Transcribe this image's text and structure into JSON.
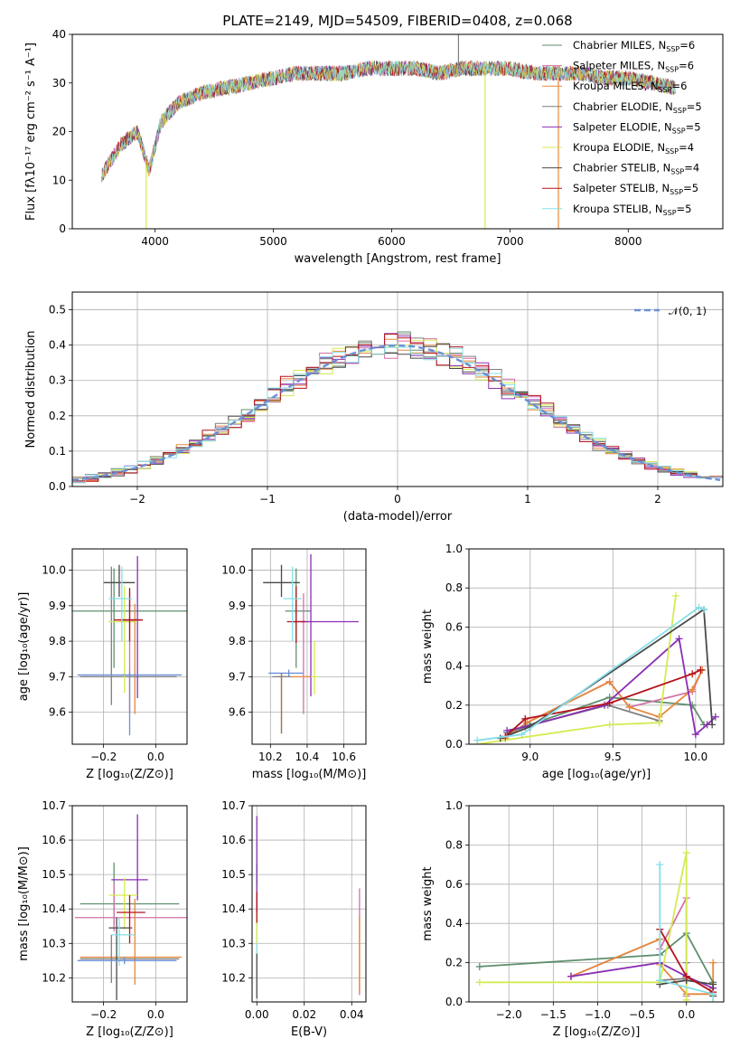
{
  "page": {
    "title": "PLATE=2149, MJD=54509, FIBERID=0408, z=0.068"
  },
  "colors": {
    "Chabrier MILES": "#5f8f6e",
    "Salpeter MILES": "#d56fa8",
    "Kroupa MILES": "#e5883a",
    "Chabrier ELODIE": "#7f7f7f",
    "Salpeter ELODIE": "#8a2fb3",
    "Kroupa ELODIE": "#d6ea52",
    "Chabrier STELIB": "#4a4a4a",
    "Salpeter STELIB": "#b5121b",
    "Kroupa STELIB": "#86dfe8",
    "normal": "#6a8fd6"
  },
  "chart_data": [
    {
      "id": "spectrum",
      "type": "line",
      "xlabel": "wavelength [Angstrom, rest frame]",
      "ylabel": "Flux [fλ10⁻¹⁷ erg cm⁻² s⁻¹ A⁻¹]",
      "xlim": [
        3300,
        8800
      ],
      "ylim": [
        0,
        40
      ],
      "xticks": [
        4000,
        5000,
        6000,
        7000,
        8000
      ],
      "yticks": [
        0,
        10,
        20,
        30,
        40
      ],
      "grid": false,
      "legend": "right",
      "legend_entries": [
        {
          "text": "Chabrier MILES, N",
          "sub": "SSP",
          "eq": "=6"
        },
        {
          "text": "Salpeter MILES, N",
          "sub": "SSP",
          "eq": "=6"
        },
        {
          "text": "Kroupa MILES, N",
          "sub": "SSP",
          "eq": "=6"
        },
        {
          "text": "Chabrier ELODIE, N",
          "sub": "SSP",
          "eq": "=5"
        },
        {
          "text": "Salpeter ELODIE, N",
          "sub": "SSP",
          "eq": "=5"
        },
        {
          "text": "Kroupa ELODIE, N",
          "sub": "SSP",
          "eq": "=4"
        },
        {
          "text": "Chabrier STELIB, N",
          "sub": "SSP",
          "eq": "=4"
        },
        {
          "text": "Salpeter STELIB, N",
          "sub": "SSP",
          "eq": "=5"
        },
        {
          "text": "Kroupa STELIB, N",
          "sub": "SSP",
          "eq": "=5"
        }
      ],
      "legend_colors": [
        "#5f8f6e",
        "#d56fa8",
        "#e5883a",
        "#7f7f7f",
        "#8a2fb3",
        "#d6ea52",
        "#4a4a4a",
        "#b5121b",
        "#86dfe8"
      ],
      "data": {
        "x": [
          3550,
          3700,
          3850,
          3950,
          4050,
          4200,
          4400,
          4600,
          4800,
          5000,
          5200,
          5400,
          5600,
          5800,
          6000,
          6200,
          6400,
          6600,
          6800,
          7000,
          7200,
          7400,
          7600,
          7800,
          8000,
          8200,
          8400
        ],
        "y": [
          11,
          17,
          20,
          12,
          22,
          26,
          28,
          29,
          30,
          31,
          32,
          32,
          32,
          33,
          33,
          33,
          32,
          33,
          33,
          33,
          32,
          32,
          32,
          31,
          31,
          30,
          29
        ]
      },
      "deep_lines": [
        {
          "x": 3925,
          "color": "#d6ea52"
        },
        {
          "x": 6790,
          "color": "#d6ea52"
        },
        {
          "x": 7410,
          "color": "#e5883a"
        },
        {
          "x": 6565,
          "color": "#7f7f7f",
          "up": true
        }
      ]
    },
    {
      "id": "residuals",
      "type": "histogram",
      "xlabel": "(data-model)/error",
      "ylabel": "Normed distribution",
      "xlim": [
        -2.5,
        2.5
      ],
      "ylim": [
        0,
        0.55
      ],
      "xticks": [
        -2,
        -1,
        0,
        1,
        2
      ],
      "yticks": [
        0.0,
        0.1,
        0.2,
        0.3,
        0.4,
        0.5
      ],
      "grid": true,
      "legend": "top-right",
      "legend_label": "𝒩(0, 1)",
      "bin_width": 0.1
    },
    {
      "id": "age_vs_Z",
      "type": "errorbar",
      "xlabel": "Z [log₁₀(Z/Z⊙)]",
      "ylabel": "age  [log₁₀(age/yr)]",
      "xlim": [
        -0.32,
        0.12
      ],
      "ylim": [
        9.51,
        10.06
      ],
      "xticks": [
        -0.2,
        0.0
      ],
      "yticks": [
        9.6,
        9.7,
        9.8,
        9.9,
        10.0
      ],
      "grid": true,
      "points": [
        {
          "x": -0.16,
          "y": 9.885,
          "xerr": [
            0.21,
            0.32
          ],
          "yerr": [
            0.16,
            0.12
          ],
          "c": "#5f8f6e"
        },
        {
          "x": -0.1,
          "y": 9.86,
          "xerr": [
            0.04,
            0.02
          ],
          "yerr": [
            0.26,
            0.08
          ],
          "c": "#d56fa8"
        },
        {
          "x": -0.08,
          "y": 9.855,
          "xerr": [
            0.06,
            0.01
          ],
          "yerr": [
            0.26,
            0.05
          ],
          "c": "#e5883a"
        },
        {
          "x": -0.17,
          "y": 9.7,
          "xerr": [
            0.12,
            0.25
          ],
          "yerr": [
            0.08,
            0.31
          ],
          "c": "#7f7f7f"
        },
        {
          "x": -0.07,
          "y": 9.86,
          "xerr": [
            0.06,
            0.02
          ],
          "yerr": [
            0.22,
            0.18
          ],
          "c": "#8a2fb3"
        },
        {
          "x": -0.12,
          "y": 9.855,
          "xerr": [
            0.06,
            0.05
          ],
          "yerr": [
            0.2,
            0.1
          ],
          "c": "#d6ea52"
        },
        {
          "x": -0.14,
          "y": 9.965,
          "xerr": [
            0.06,
            0.06
          ],
          "yerr": [
            0.04,
            0.05
          ],
          "c": "#4a4a4a"
        },
        {
          "x": -0.1,
          "y": 9.86,
          "xerr": [
            0.06,
            0.05
          ],
          "yerr": [
            0.06,
            0.09
          ],
          "c": "#b5121b"
        },
        {
          "x": -0.13,
          "y": 9.92,
          "xerr": [
            0.05,
            0.04
          ],
          "yerr": [
            0.12,
            0.09
          ],
          "c": "#86dfe8"
        },
        {
          "x": -0.1,
          "y": 9.705,
          "xerr": [
            0.2,
            0.2
          ],
          "yerr": [
            0.17,
            0.01
          ],
          "c": "#6a8fd6"
        }
      ]
    },
    {
      "id": "age_vs_mass",
      "type": "errorbar",
      "xlabel": "mass [log₁₀(M/M⊙)]",
      "ylabel": "",
      "xlim": [
        10.1,
        10.72
      ],
      "ylim": [
        9.51,
        10.06
      ],
      "xticks": [
        10.2,
        10.4,
        10.6
      ],
      "yticks": [
        9.6,
        9.7,
        9.8,
        9.9,
        10.0
      ],
      "grid": true,
      "points": [
        {
          "x": 10.34,
          "y": 9.885,
          "xerr": [
            0.06,
            0.08
          ],
          "yerr": [
            0.16,
            0.12
          ],
          "c": "#5f8f6e"
        },
        {
          "x": 10.38,
          "y": 9.855,
          "xerr": [
            0.02,
            0.03
          ],
          "yerr": [
            0.26,
            0.08
          ],
          "c": "#d56fa8"
        },
        {
          "x": 10.26,
          "y": 9.7,
          "xerr": [
            0.02,
            0.17
          ],
          "yerr": [
            0.16,
            0.01
          ],
          "c": "#e5883a"
        },
        {
          "x": 10.26,
          "y": 9.7,
          "xerr": [
            0.05,
            0.05
          ],
          "yerr": [
            0.16,
            0.01
          ],
          "c": "#7f7f7f"
        },
        {
          "x": 10.42,
          "y": 9.855,
          "xerr": [
            0.1,
            0.26
          ],
          "yerr": [
            0.21,
            0.19
          ],
          "c": "#8a2fb3"
        },
        {
          "x": 10.44,
          "y": 9.7,
          "xerr": [
            0.02,
            0.02
          ],
          "yerr": [
            0.05,
            0.1
          ],
          "c": "#d6ea52"
        },
        {
          "x": 10.26,
          "y": 9.965,
          "xerr": [
            0.1,
            0.1
          ],
          "yerr": [
            0.04,
            0.05
          ],
          "c": "#4a4a4a"
        },
        {
          "x": 10.34,
          "y": 9.855,
          "xerr": [
            0.05,
            0.05
          ],
          "yerr": [
            0.06,
            0.1
          ],
          "c": "#b5121b"
        },
        {
          "x": 10.32,
          "y": 9.92,
          "xerr": [
            0.05,
            0.05
          ],
          "yerr": [
            0.12,
            0.09
          ],
          "c": "#86dfe8"
        },
        {
          "x": 10.3,
          "y": 9.71,
          "xerr": [
            0.11,
            0.08
          ],
          "yerr": [
            0.01,
            0.01
          ],
          "c": "#6a8fd6"
        }
      ]
    },
    {
      "id": "weight_vs_age",
      "type": "line",
      "xlabel": "age  [log₁₀(age/yr)]",
      "ylabel": "mass weight",
      "xlim": [
        8.63,
        10.17
      ],
      "ylim": [
        0.0,
        1.0
      ],
      "xticks": [
        9.0,
        9.5,
        10.0
      ],
      "yticks": [
        0.0,
        0.2,
        0.4,
        0.6,
        0.8,
        1.0
      ],
      "grid": true,
      "series": [
        {
          "c": "#5f8f6e",
          "x": [
            8.88,
            9.0,
            9.48,
            9.98,
            10.05
          ],
          "y": [
            0.06,
            0.1,
            0.24,
            0.2,
            0.1
          ]
        },
        {
          "c": "#d56fa8",
          "x": [
            8.85,
            8.98,
            9.48,
            9.6,
            9.98,
            10.04
          ],
          "y": [
            0.03,
            0.11,
            0.32,
            0.19,
            0.27,
            0.38
          ]
        },
        {
          "c": "#e5883a",
          "x": [
            8.85,
            8.98,
            9.48,
            9.6,
            9.78,
            9.98,
            10.04
          ],
          "y": [
            0.03,
            0.11,
            0.32,
            0.19,
            0.14,
            0.28,
            0.38
          ]
        },
        {
          "c": "#7f7f7f",
          "x": [
            8.86,
            8.97,
            9.47,
            9.78
          ],
          "y": [
            0.06,
            0.09,
            0.2,
            0.12
          ]
        },
        {
          "c": "#8a2fb3",
          "x": [
            8.86,
            8.97,
            9.45,
            9.9,
            10.0,
            10.07,
            10.12
          ],
          "y": [
            0.07,
            0.09,
            0.2,
            0.54,
            0.05,
            0.1,
            0.14
          ]
        },
        {
          "c": "#d6ea52",
          "x": [
            8.68,
            9.48,
            9.78,
            9.88
          ],
          "y": [
            0.0,
            0.1,
            0.11,
            0.76
          ]
        },
        {
          "c": "#4a4a4a",
          "x": [
            8.82,
            9.0,
            10.05,
            10.1
          ],
          "y": [
            0.03,
            0.09,
            0.69,
            0.1
          ]
        },
        {
          "c": "#b5121b",
          "x": [
            8.85,
            8.97,
            9.48,
            9.98,
            10.03
          ],
          "y": [
            0.04,
            0.13,
            0.21,
            0.36,
            0.38
          ]
        },
        {
          "c": "#86dfe8",
          "x": [
            8.68,
            8.95,
            10.02,
            10.05
          ],
          "y": [
            0.02,
            0.05,
            0.7,
            0.69
          ]
        }
      ]
    },
    {
      "id": "mass_vs_Z",
      "type": "errorbar",
      "xlabel": "Z [log₁₀(Z/Z⊙)]",
      "ylabel": "mass [log₁₀(M/M⊙)]",
      "xlim": [
        -0.32,
        0.12
      ],
      "ylim": [
        10.13,
        10.7
      ],
      "xticks": [
        -0.2,
        0.0
      ],
      "yticks": [
        10.2,
        10.3,
        10.4,
        10.5,
        10.6,
        10.7
      ],
      "grid": true,
      "points": [
        {
          "x": -0.16,
          "y": 10.415,
          "xerr": [
            0.13,
            0.25
          ],
          "yerr": [
            0.06,
            0.12
          ],
          "c": "#5f8f6e"
        },
        {
          "x": -0.16,
          "y": 10.375,
          "xerr": [
            0.15,
            0.3
          ],
          "yerr": [
            0.04,
            0.1
          ],
          "c": "#d56fa8"
        },
        {
          "x": -0.08,
          "y": 10.26,
          "xerr": [
            0.21,
            0.18
          ],
          "yerr": [
            0.08,
            0.17
          ],
          "c": "#e5883a"
        },
        {
          "x": -0.17,
          "y": 10.255,
          "xerr": [
            0.12,
            0.26
          ],
          "yerr": [
            0.07,
            0.07
          ],
          "c": "#7f7f7f"
        },
        {
          "x": -0.07,
          "y": 10.485,
          "xerr": [
            0.1,
            0.04
          ],
          "yerr": [
            0.06,
            0.19
          ],
          "c": "#8a2fb3"
        },
        {
          "x": -0.12,
          "y": 10.44,
          "xerr": [
            0.06,
            0.05
          ],
          "yerr": [
            0.1,
            0.05
          ],
          "c": "#d6ea52"
        },
        {
          "x": -0.15,
          "y": 10.345,
          "xerr": [
            0.03,
            0.06
          ],
          "yerr": [
            0.21,
            0.03
          ],
          "c": "#4a4a4a"
        },
        {
          "x": -0.1,
          "y": 10.39,
          "xerr": [
            0.05,
            0.06
          ],
          "yerr": [
            0.09,
            0.05
          ],
          "c": "#b5121b"
        },
        {
          "x": -0.14,
          "y": 10.325,
          "xerr": [
            0.03,
            0.06
          ],
          "yerr": [
            0.09,
            0.05
          ],
          "c": "#86dfe8"
        },
        {
          "x": -0.12,
          "y": 10.25,
          "xerr": [
            0.18,
            0.2
          ],
          "yerr": [
            0.01,
            0.01
          ],
          "c": "#6a8fd6"
        }
      ]
    },
    {
      "id": "mass_vs_EBV",
      "type": "errorbar",
      "xlabel": "E(B-V)",
      "ylabel": "",
      "xlim": [
        -0.002,
        0.046
      ],
      "ylim": [
        10.13,
        10.7
      ],
      "xticks": [
        0.0,
        0.02,
        0.04
      ],
      "yticks": [
        10.2,
        10.3,
        10.4,
        10.5,
        10.6,
        10.7
      ],
      "grid": true,
      "points": [
        {
          "x": 0.0,
          "y": 10.41,
          "xerr": [
            0,
            0
          ],
          "yerr": [
            0.06,
            0.12
          ],
          "c": "#5f8f6e"
        },
        {
          "x": 0.0,
          "y": 10.32,
          "xerr": [
            0,
            0
          ],
          "yerr": [
            0.06,
            0.1
          ],
          "c": "#86dfe8"
        },
        {
          "x": 0.0,
          "y": 10.4,
          "xerr": [
            0,
            0
          ],
          "yerr": [
            0.1,
            0.07
          ],
          "c": "#d6ea52"
        },
        {
          "x": 0.0,
          "y": 10.49,
          "xerr": [
            0,
            0
          ],
          "yerr": [
            0.1,
            0.18
          ],
          "c": "#8a2fb3"
        },
        {
          "x": 0.0,
          "y": 10.4,
          "xerr": [
            0,
            0
          ],
          "yerr": [
            0.04,
            0.05
          ],
          "c": "#b5121b"
        },
        {
          "x": 0.0,
          "y": 10.22,
          "xerr": [
            0,
            0
          ],
          "yerr": [
            0.08,
            0.05
          ],
          "c": "#4a4a4a"
        },
        {
          "x": 0.0433,
          "y": 10.3,
          "xerr": [
            0,
            0
          ],
          "yerr": [
            0.15,
            0.16
          ],
          "c": "#d56fa8"
        },
        {
          "x": 0.0433,
          "y": 10.26,
          "xerr": [
            0,
            0
          ],
          "yerr": [
            0.1,
            0.12
          ],
          "c": "#e5883a"
        }
      ]
    },
    {
      "id": "weight_vs_Z",
      "type": "line",
      "xlabel": "Z [log₁₀(Z/Z⊙)]",
      "ylabel": "mass weight",
      "xlim": [
        -2.45,
        0.42
      ],
      "ylim": [
        0.0,
        1.0
      ],
      "xticks": [
        -2.0,
        -1.5,
        -1.0,
        -0.5,
        0.0
      ],
      "yticks": [
        0.0,
        0.2,
        0.4,
        0.6,
        0.8,
        1.0
      ],
      "grid": true,
      "series": [
        {
          "c": "#5f8f6e",
          "x": [
            -2.33,
            -0.3,
            0.0,
            0.3
          ],
          "y": [
            0.18,
            0.24,
            0.35,
            0.1
          ]
        },
        {
          "c": "#d56fa8",
          "x": [
            -1.3,
            -0.3,
            -0.3,
            0.0,
            0.0
          ],
          "y": [
            0.13,
            0.32,
            0.27,
            0.53,
            0.03
          ]
        },
        {
          "c": "#e5883a",
          "x": [
            -1.3,
            -0.3,
            -0.3,
            0.0,
            0.3,
            0.3
          ],
          "y": [
            0.13,
            0.32,
            0.19,
            0.04,
            0.04,
            0.2
          ]
        },
        {
          "c": "#7f7f7f",
          "x": [
            -0.3,
            0.0,
            0.0
          ],
          "y": [
            0.11,
            0.12,
            0.2
          ]
        },
        {
          "c": "#8a2fb3",
          "x": [
            -1.3,
            -0.3,
            0.0,
            0.3
          ],
          "y": [
            0.13,
            0.2,
            0.13,
            0.07
          ]
        },
        {
          "c": "#d6ea52",
          "x": [
            -2.33,
            -0.3,
            0.0,
            0.0
          ],
          "y": [
            0.1,
            0.1,
            0.76,
            0.01
          ]
        },
        {
          "c": "#4a4a4a",
          "x": [
            -0.3,
            0.0,
            0.3,
            0.3
          ],
          "y": [
            0.09,
            0.11,
            0.09,
            0.03
          ]
        },
        {
          "c": "#b5121b",
          "x": [
            -0.3,
            0.0,
            0.3
          ],
          "y": [
            0.37,
            0.13,
            0.05
          ]
        },
        {
          "c": "#86dfe8",
          "x": [
            -0.3,
            -0.3,
            0.3,
            0.3
          ],
          "y": [
            0.7,
            0.11,
            0.04,
            0.0
          ]
        }
      ]
    }
  ]
}
